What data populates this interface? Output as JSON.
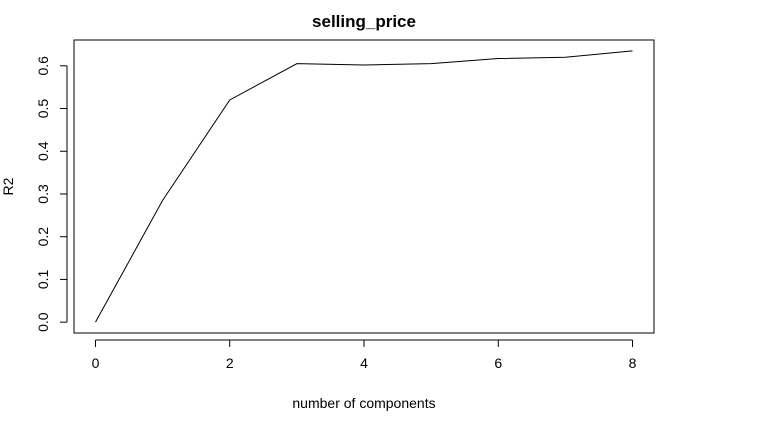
{
  "chart_data": {
    "type": "line",
    "title": "selling_price",
    "xlabel": "number of components",
    "ylabel": "R2",
    "x": [
      0,
      1,
      2,
      3,
      4,
      5,
      6,
      7,
      8
    ],
    "series": [
      {
        "values": [
          0.0,
          0.285,
          0.52,
          0.605,
          0.602,
          0.605,
          0.617,
          0.62,
          0.635
        ]
      }
    ],
    "xlim": [
      -0.32,
      8.32
    ],
    "ylim": [
      -0.0254,
      0.6604
    ],
    "xticks": [
      0,
      2,
      4,
      6,
      8
    ],
    "yticks": [
      0.0,
      0.1,
      0.2,
      0.3,
      0.4,
      0.5,
      0.6
    ],
    "xtick_labels": [
      "0",
      "2",
      "4",
      "6",
      "8"
    ],
    "ytick_labels": [
      "0.0",
      "0.1",
      "0.2",
      "0.3",
      "0.4",
      "0.5",
      "0.6"
    ],
    "grid": false,
    "legend": "none",
    "line_color": "#000000"
  }
}
